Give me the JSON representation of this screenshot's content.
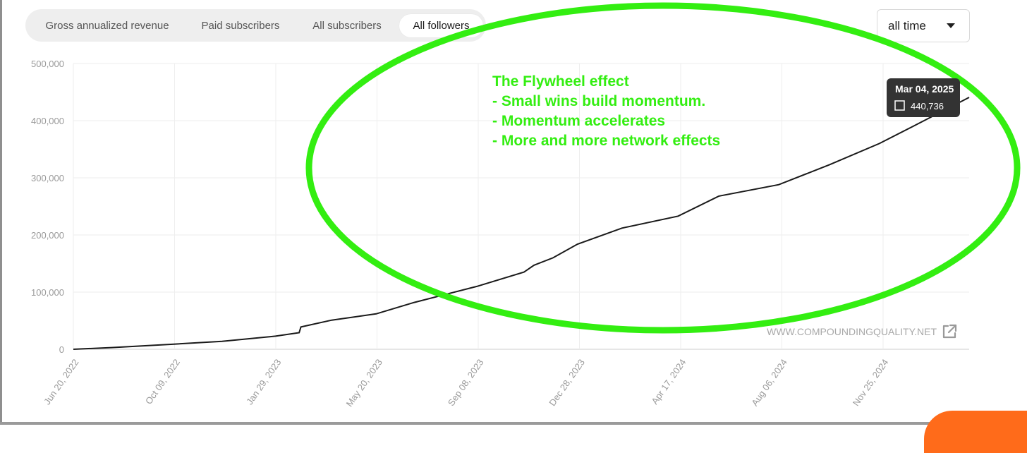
{
  "tabs": [
    {
      "label": "Gross annualized revenue",
      "active": false
    },
    {
      "label": "Paid subscribers",
      "active": false
    },
    {
      "label": "All subscribers",
      "active": false
    },
    {
      "label": "All followers",
      "active": true
    }
  ],
  "range_select": {
    "value": "all time",
    "icon": "caret-down-icon"
  },
  "annotation": {
    "lines": [
      "The Flywheel effect",
      "- Small wins build momentum.",
      "- Momentum accelerates",
      "- More and more network effects"
    ],
    "color": "#33ee11"
  },
  "watermark": {
    "text": "WWW.COMPOUNDINGQUALITY.NET",
    "icon": "external-link-icon"
  },
  "tooltip": {
    "date": "Mar 04, 2025",
    "value": "440,736"
  },
  "colors": {
    "line": "#1a1a1a",
    "grid": "#eeeeee",
    "axis_text": "#9a9a9a",
    "accent": "#ff6b1a"
  },
  "chart_data": {
    "type": "line",
    "series": [
      {
        "x": [
          "2022-06-20",
          "2022-08-01",
          "2022-10-09",
          "2022-12-01",
          "2023-01-29",
          "2023-02-24",
          "2023-02-26",
          "2023-04-01",
          "2023-05-20",
          "2023-07-01",
          "2023-09-08",
          "2023-10-30",
          "2023-11-10",
          "2023-12-01",
          "2023-12-28",
          "2024-02-15",
          "2024-04-17",
          "2024-06-01",
          "2024-08-06",
          "2024-10-01",
          "2024-11-25",
          "2025-01-01",
          "2025-03-04"
        ],
        "values": [
          0,
          3000,
          9000,
          14000,
          23000,
          29000,
          39000,
          51000,
          62000,
          82000,
          110000,
          135000,
          147000,
          160000,
          184000,
          212000,
          233000,
          268000,
          288000,
          323000,
          360000,
          390000,
          440736
        ]
      }
    ],
    "x_tick_labels": [
      "Jun 20, 2022",
      "Oct 09, 2022",
      "Jan 29, 2023",
      "May 20, 2023",
      "Sep 08, 2023",
      "Dec 28, 2023",
      "Apr 17, 2024",
      "Aug 06, 2024",
      "Nov 25, 2024"
    ],
    "y_tick_labels": [
      "0",
      "100,000",
      "200,000",
      "300,000",
      "400,000",
      "500,000"
    ],
    "ylim": [
      0,
      500000
    ],
    "xlim": [
      "2022-06-20",
      "2025-03-04"
    ],
    "grid": true
  }
}
